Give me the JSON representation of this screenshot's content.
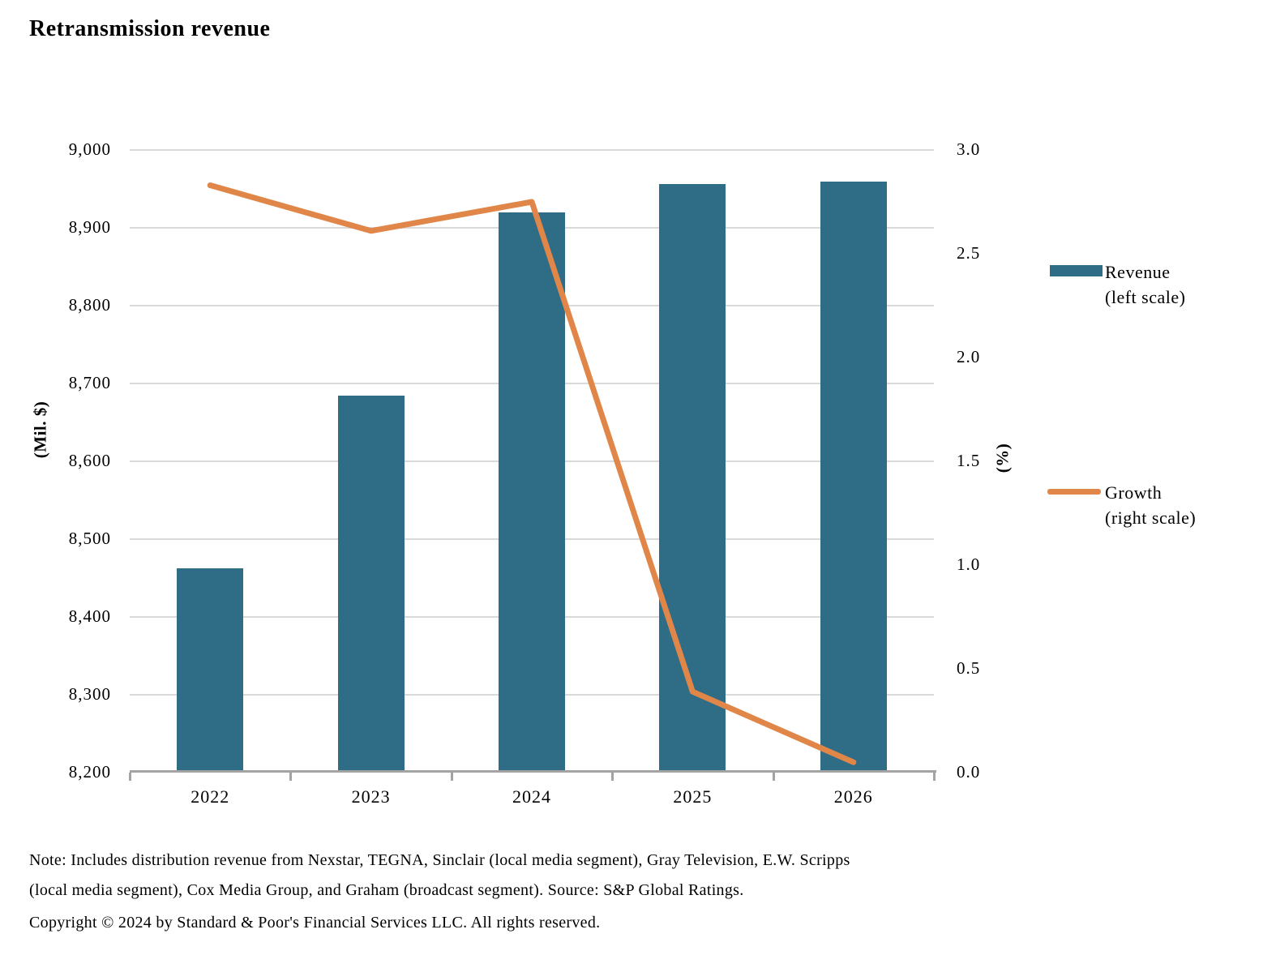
{
  "title": "Retransmission revenue",
  "chart_data": {
    "type": "bar",
    "subtype": "bar-and-line-dual-axis",
    "categories": [
      "2022",
      "2023",
      "2024",
      "2025",
      "2026"
    ],
    "series": [
      {
        "name": "Revenue (left scale)",
        "type": "bar",
        "axis": "left",
        "values": [
          8462,
          8684,
          8920,
          8956,
          8959
        ],
        "color": "#2f6d87"
      },
      {
        "name": "Growth (right scale)",
        "type": "line",
        "axis": "right",
        "values": [
          2.83,
          2.61,
          2.75,
          0.39,
          0.05
        ],
        "color": "#e08648"
      }
    ],
    "left_axis": {
      "label": "(Mil. $)",
      "min": 8200,
      "max": 9000,
      "tick_step": 100,
      "tick_labels": [
        "9,000",
        "8,900",
        "8,800",
        "8,700",
        "8,600",
        "8,500",
        "8,400",
        "8,300",
        "8,200"
      ]
    },
    "right_axis": {
      "label": "(%)",
      "min": 0.0,
      "max": 3.0,
      "tick_step": 0.5,
      "tick_labels": [
        "3.0",
        "2.5",
        "2.0",
        "1.5",
        "1.0",
        "0.5",
        "0.0"
      ]
    },
    "grid": true,
    "legend_position": "right"
  },
  "legend": {
    "revenue_label": "Revenue",
    "revenue_sublabel": "(left scale)",
    "growth_label": "Growth",
    "growth_sublabel": "(right scale)"
  },
  "footer": {
    "note_line1": "Note: Includes distribution revenue from Nexstar, TEGNA, Sinclair (local media segment), Gray Television, E.W. Scripps",
    "note_line2": "(local media segment), Cox Media Group, and Graham (broadcast segment). Source: S&P Global Ratings.",
    "copyright": "Copyright © 2024 by Standard & Poor's Financial Services LLC. All rights reserved."
  },
  "colors": {
    "bar": "#2f6d87",
    "line": "#e08648",
    "grid": "#d9d9d9",
    "axis": "#a3a3a3",
    "text": "#000000",
    "background": "#ffffff"
  }
}
